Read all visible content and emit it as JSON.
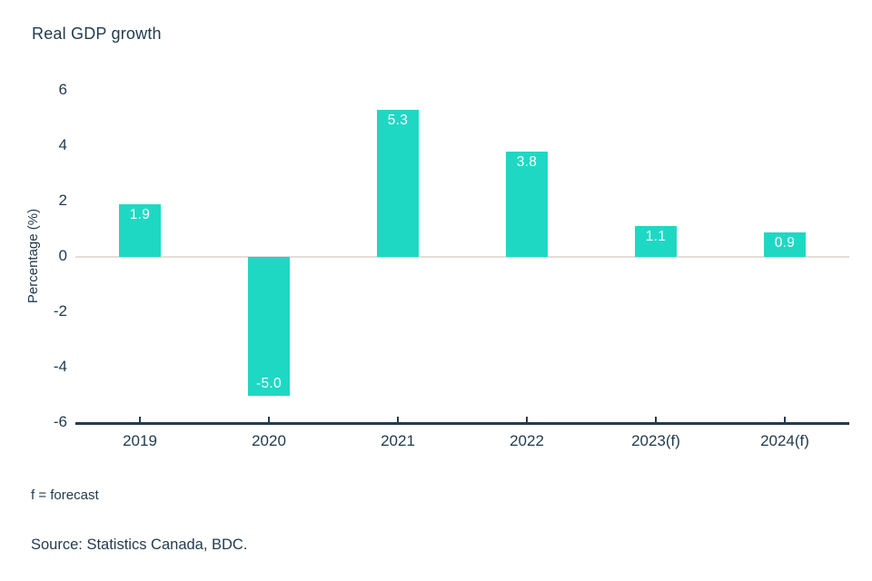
{
  "title": "Real GDP growth",
  "footnote": "f = forecast",
  "source": "Source: Statistics Canada, BDC.",
  "colors": {
    "bar": "#1fd8c4",
    "bar_label": "#ffffff",
    "text": "#233c4e",
    "axis_line": "#233c4e",
    "zero_line": "#e4ddd9",
    "background": "#ffffff"
  },
  "chart_data": {
    "type": "bar",
    "title": "Real GDP growth",
    "categories": [
      "2019",
      "2020",
      "2021",
      "2022",
      "2023(f)",
      "2024(f)"
    ],
    "values": [
      1.9,
      -5.0,
      5.3,
      3.8,
      1.1,
      0.9
    ],
    "value_labels": [
      "1.9",
      "-5.0",
      "5.3",
      "3.8",
      "1.1",
      "0.9"
    ],
    "xlabel": "",
    "ylabel": "Percentage (%)",
    "ylim": [
      -6,
      6
    ],
    "y_ticks": [
      6,
      4,
      2,
      0,
      -2,
      -4,
      -6
    ],
    "grid": "zero-line-only",
    "legend": "none",
    "value_label_position": "inside-end"
  }
}
